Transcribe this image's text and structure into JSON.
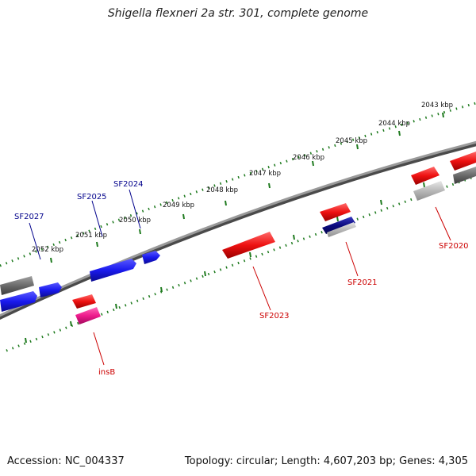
{
  "title": "Shigella flexneri 2a str. 301, complete genome",
  "footer": {
    "accession": "Accession: NC_004337",
    "summary": "Topology: circular; Length: 4,607,203 bp; Genes: 4,305"
  },
  "colors": {
    "backbone": "#8a8a8a",
    "ticks": "#1e7a1e",
    "forward_gene": "#1a1aee",
    "reverse_gene": "#ee1111",
    "gray_feature": "#6b6b6b",
    "light_gray_feature": "#b8b8b8",
    "navy_feature": "#0b0b80",
    "pink_feature": "#ee1a8c",
    "forward_label": "#00008b",
    "reverse_label": "#cc0000"
  },
  "kbp_labels": [
    "2043 kbp",
    "2044 kbp",
    "2045 kbp",
    "2046 kbp",
    "2047 kbp",
    "2048 kbp",
    "2049 kbp",
    "2050 kbp",
    "2051 kbp",
    "2052 kbp"
  ],
  "gene_labels": {
    "forward": [
      "SF2027",
      "SF2025",
      "SF2024"
    ],
    "reverse": [
      "SF2020",
      "SF2021",
      "SF2023",
      "insB"
    ]
  }
}
